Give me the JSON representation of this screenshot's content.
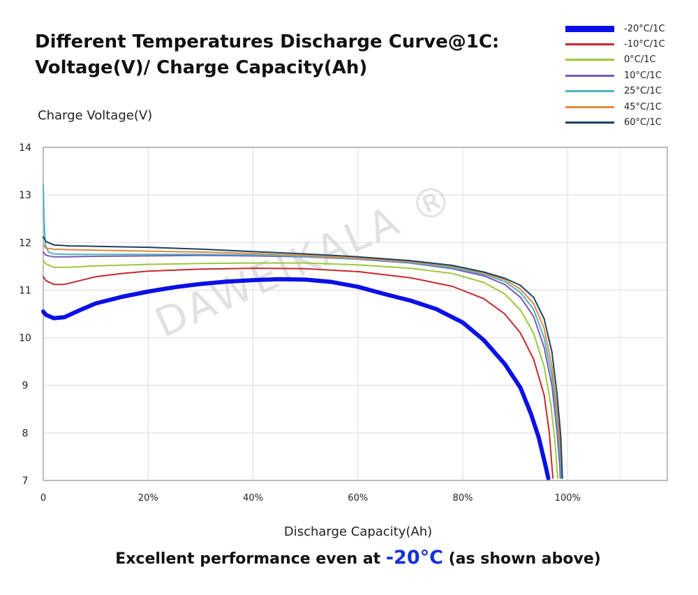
{
  "title": {
    "line1": "Different Temperatures Discharge Curve@1C:",
    "line2": "Voltage(V)/ Charge Capacity(Ah)"
  },
  "watermark": "DAWEIKALA ®",
  "footer": {
    "before": "Excellent performance even at ",
    "highlight": "-20°C",
    "after": " (as shown above)"
  },
  "chart_data": {
    "type": "line",
    "title": "Different Temperatures Discharge Curve@1C: Voltage(V)/ Charge Capacity(Ah)",
    "xlabel": "Discharge Capacity(Ah)",
    "ylabel": "Charge Voltage(V)",
    "xlim": [
      0,
      119
    ],
    "ylim": [
      7,
      14
    ],
    "x_ticks": [
      0,
      20,
      40,
      60,
      80,
      100
    ],
    "x_tick_labels": [
      "0",
      "20%",
      "40%",
      "60%",
      "80%",
      "100%"
    ],
    "y_ticks": [
      7,
      8,
      9,
      10,
      11,
      12,
      13,
      14
    ],
    "grid": true,
    "legend_position": "top-right",
    "series": [
      {
        "name": "-20°C/1C",
        "color": "#0a10e6",
        "width": 6,
        "points": [
          [
            0,
            10.55
          ],
          [
            0.5,
            10.48
          ],
          [
            2,
            10.41
          ],
          [
            4,
            10.43
          ],
          [
            7,
            10.58
          ],
          [
            10,
            10.72
          ],
          [
            15,
            10.86
          ],
          [
            20,
            10.97
          ],
          [
            25,
            11.06
          ],
          [
            30,
            11.13
          ],
          [
            35,
            11.18
          ],
          [
            40,
            11.21
          ],
          [
            45,
            11.23
          ],
          [
            50,
            11.22
          ],
          [
            55,
            11.17
          ],
          [
            60,
            11.07
          ],
          [
            65,
            10.92
          ],
          [
            70,
            10.78
          ],
          [
            75,
            10.6
          ],
          [
            80,
            10.32
          ],
          [
            84,
            9.95
          ],
          [
            88,
            9.45
          ],
          [
            91,
            8.95
          ],
          [
            93,
            8.4
          ],
          [
            94.5,
            7.9
          ],
          [
            95.8,
            7.3
          ],
          [
            96.3,
            7.05
          ]
        ]
      },
      {
        "name": "-10°C/1C",
        "color": "#c8282c",
        "width": 2,
        "points": [
          [
            0,
            11.28
          ],
          [
            0.5,
            11.2
          ],
          [
            2,
            11.12
          ],
          [
            4,
            11.12
          ],
          [
            7,
            11.2
          ],
          [
            10,
            11.28
          ],
          [
            15,
            11.35
          ],
          [
            20,
            11.4
          ],
          [
            30,
            11.44
          ],
          [
            40,
            11.46
          ],
          [
            50,
            11.45
          ],
          [
            60,
            11.39
          ],
          [
            70,
            11.26
          ],
          [
            78,
            11.08
          ],
          [
            84,
            10.82
          ],
          [
            88,
            10.5
          ],
          [
            91,
            10.1
          ],
          [
            93.5,
            9.55
          ],
          [
            95.5,
            8.8
          ],
          [
            96.5,
            8.0
          ],
          [
            97,
            7.3
          ],
          [
            97.2,
            7.05
          ]
        ]
      },
      {
        "name": "0°C/1C",
        "color": "#9dc83c",
        "width": 2,
        "points": [
          [
            0,
            11.62
          ],
          [
            0.5,
            11.55
          ],
          [
            2,
            11.48
          ],
          [
            5,
            11.48
          ],
          [
            10,
            11.51
          ],
          [
            20,
            11.54
          ],
          [
            30,
            11.56
          ],
          [
            40,
            11.57
          ],
          [
            50,
            11.57
          ],
          [
            60,
            11.53
          ],
          [
            70,
            11.46
          ],
          [
            78,
            11.35
          ],
          [
            84,
            11.16
          ],
          [
            88,
            10.92
          ],
          [
            91,
            10.58
          ],
          [
            93.5,
            10.1
          ],
          [
            95.5,
            9.4
          ],
          [
            96.8,
            8.6
          ],
          [
            97.6,
            7.8
          ],
          [
            98,
            7.2
          ],
          [
            98.1,
            7.05
          ]
        ]
      },
      {
        "name": "10°C/1C",
        "color": "#7a58b4",
        "width": 2,
        "points": [
          [
            0,
            11.8
          ],
          [
            0.5,
            11.73
          ],
          [
            2,
            11.7
          ],
          [
            5,
            11.7
          ],
          [
            10,
            11.71
          ],
          [
            20,
            11.72
          ],
          [
            30,
            11.73
          ],
          [
            40,
            11.72
          ],
          [
            50,
            11.7
          ],
          [
            60,
            11.65
          ],
          [
            70,
            11.57
          ],
          [
            78,
            11.45
          ],
          [
            84,
            11.3
          ],
          [
            88,
            11.12
          ],
          [
            91,
            10.85
          ],
          [
            93.5,
            10.45
          ],
          [
            95.5,
            9.8
          ],
          [
            97,
            9.0
          ],
          [
            98,
            8.0
          ],
          [
            98.5,
            7.3
          ],
          [
            98.6,
            7.05
          ]
        ]
      },
      {
        "name": "25°C/1C",
        "color": "#4cb3c6",
        "width": 2,
        "points": [
          [
            0,
            13.22
          ],
          [
            0.15,
            12.5
          ],
          [
            0.4,
            11.95
          ],
          [
            1,
            11.8
          ],
          [
            2,
            11.76
          ],
          [
            5,
            11.75
          ],
          [
            10,
            11.75
          ],
          [
            20,
            11.75
          ],
          [
            30,
            11.75
          ],
          [
            40,
            11.74
          ],
          [
            50,
            11.71
          ],
          [
            60,
            11.66
          ],
          [
            70,
            11.58
          ],
          [
            78,
            11.47
          ],
          [
            84,
            11.33
          ],
          [
            88,
            11.18
          ],
          [
            91,
            10.95
          ],
          [
            93.5,
            10.6
          ],
          [
            95.5,
            10.0
          ],
          [
            97,
            9.2
          ],
          [
            98,
            8.3
          ],
          [
            98.6,
            7.5
          ],
          [
            98.8,
            7.05
          ]
        ]
      },
      {
        "name": "45°C/1C",
        "color": "#e28a3a",
        "width": 2,
        "points": [
          [
            0,
            11.95
          ],
          [
            0.5,
            11.88
          ],
          [
            2,
            11.86
          ],
          [
            5,
            11.85
          ],
          [
            10,
            11.84
          ],
          [
            20,
            11.82
          ],
          [
            30,
            11.8
          ],
          [
            40,
            11.77
          ],
          [
            50,
            11.73
          ],
          [
            60,
            11.67
          ],
          [
            70,
            11.6
          ],
          [
            78,
            11.5
          ],
          [
            84,
            11.36
          ],
          [
            88,
            11.22
          ],
          [
            91,
            11.02
          ],
          [
            93.5,
            10.72
          ],
          [
            95.5,
            10.2
          ],
          [
            97,
            9.4
          ],
          [
            98,
            8.5
          ],
          [
            98.7,
            7.6
          ],
          [
            99,
            7.05
          ]
        ]
      },
      {
        "name": "60°C/1C",
        "color": "#1c4064",
        "width": 2,
        "points": [
          [
            0,
            12.12
          ],
          [
            0.5,
            12.02
          ],
          [
            2,
            11.95
          ],
          [
            5,
            11.93
          ],
          [
            10,
            11.92
          ],
          [
            20,
            11.9
          ],
          [
            30,
            11.86
          ],
          [
            40,
            11.81
          ],
          [
            50,
            11.76
          ],
          [
            60,
            11.7
          ],
          [
            70,
            11.62
          ],
          [
            78,
            11.52
          ],
          [
            84,
            11.38
          ],
          [
            88,
            11.25
          ],
          [
            91,
            11.1
          ],
          [
            93.5,
            10.85
          ],
          [
            95.5,
            10.4
          ],
          [
            97,
            9.7
          ],
          [
            98,
            8.8
          ],
          [
            98.7,
            7.9
          ],
          [
            99,
            7.05
          ]
        ]
      }
    ]
  }
}
